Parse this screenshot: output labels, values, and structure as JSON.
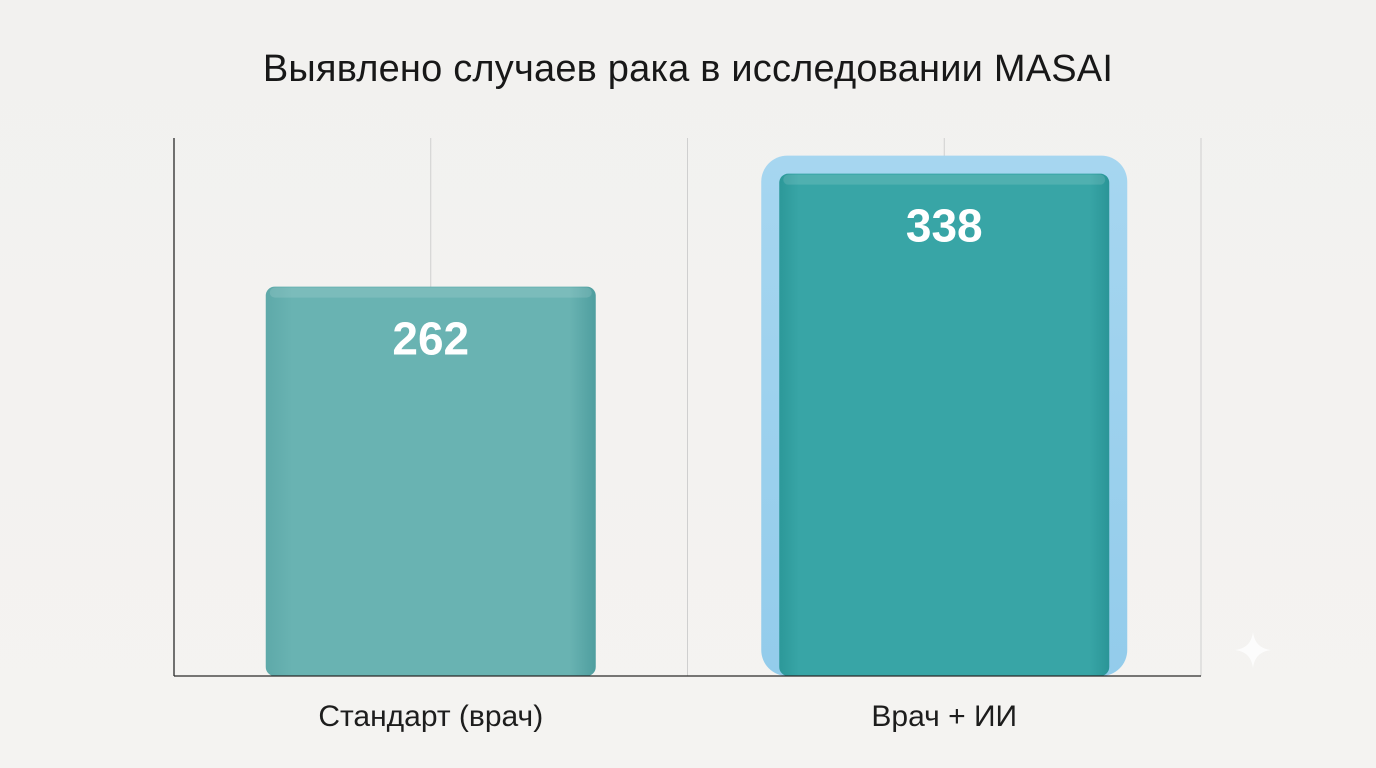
{
  "chart_data": {
    "type": "bar",
    "title": "Выявлено случаев рака в исследовании MASAI",
    "categories": [
      "Стандарт (врач)",
      "Врач + ИИ"
    ],
    "values": [
      262,
      338
    ],
    "value_labels": [
      "262",
      "338"
    ],
    "xlabel": "",
    "ylabel": "",
    "ylim": [
      0,
      362
    ],
    "grid": true,
    "highlighted_category": "Врач + ИИ",
    "colors": {
      "bar_standard": "#67b2b1",
      "bar_ai": "#35a3a5",
      "ai_outline": "#9fd2ee",
      "axis": "#2a2a2a",
      "grid": "#cfcfcf",
      "value_text": "#ffffff"
    }
  },
  "decorations": {
    "sparkle_icon": "sparkle-icon"
  }
}
